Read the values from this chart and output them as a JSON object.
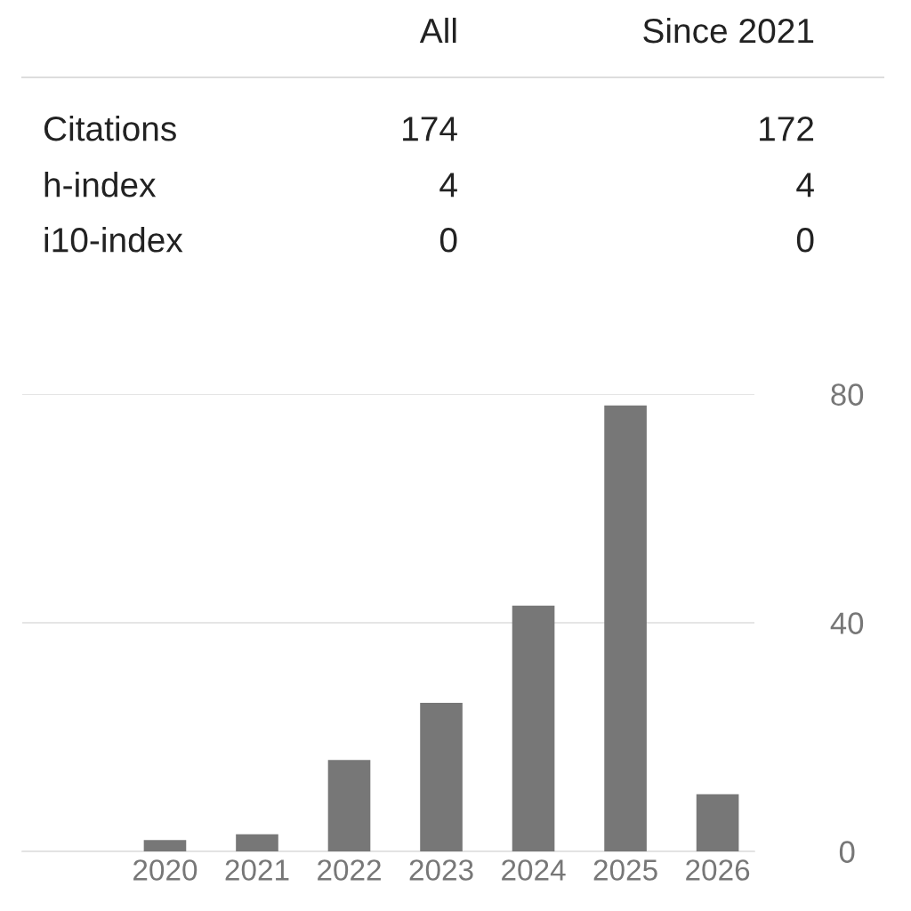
{
  "chart_data": [
    {
      "type": "other",
      "categories": [
        "All",
        "Since 2021"
      ],
      "y_categories": [
        "Citations",
        "h-index",
        "i10-index"
      ],
      "cell_labels": [
        [
          "174",
          "172"
        ],
        [
          "4",
          "4"
        ],
        [
          "0",
          "0"
        ]
      ]
    },
    {
      "type": "bar",
      "categories": [
        "2020",
        "2021",
        "2022",
        "2023",
        "2024",
        "2025",
        "2026"
      ],
      "values": [
        2,
        3,
        16,
        26,
        43,
        78,
        10
      ],
      "color": "#777777",
      "ylim": [
        0,
        80
      ],
      "yticks": [
        0,
        40,
        80
      ],
      "grid": "y"
    }
  ]
}
